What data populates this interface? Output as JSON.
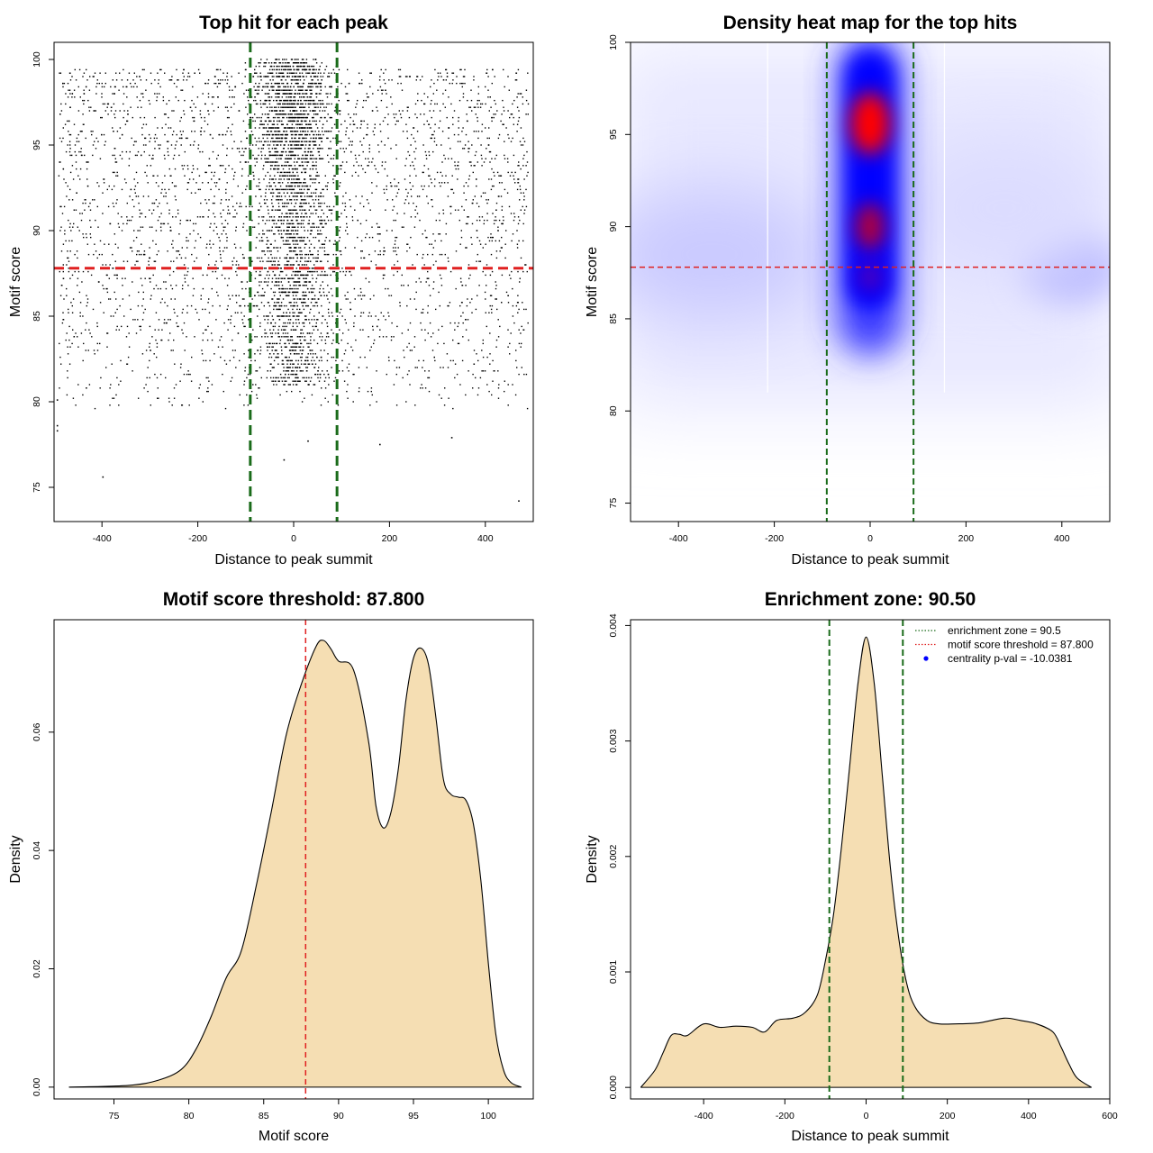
{
  "chart_data": [
    {
      "type": "scatter",
      "title": "Top hit for each peak",
      "xlabel": "Distance to peak summit",
      "ylabel": "Motif score",
      "xlim": [
        -500,
        500
      ],
      "ylim": [
        73,
        101
      ],
      "x_ticks": [
        -400,
        -200,
        0,
        200,
        400
      ],
      "y_ticks": [
        75,
        80,
        85,
        90,
        95,
        100
      ],
      "x_tick_labels": [
        "-400",
        "-200",
        "0",
        "200",
        "400"
      ],
      "y_tick_labels": [
        "75",
        "80",
        "85",
        "90",
        "95",
        "100"
      ],
      "threshold_line": {
        "y": 87.8,
        "color": "#e02020",
        "style": "dashed"
      },
      "zone_lines": {
        "x": [
          -90.5,
          90.5
        ],
        "color": "#1a6b1a",
        "style": "dashed"
      },
      "point_distribution": "dense near x=0 and high scores; uniform background across x in [-490, 490], scores mostly 80-100",
      "outliers": [
        {
          "x": -493,
          "y": 80.1
        },
        {
          "x": -493,
          "y": 78.6
        },
        {
          "x": -493,
          "y": 78.3
        },
        {
          "x": -398,
          "y": 75.6
        },
        {
          "x": -20,
          "y": 76.6
        },
        {
          "x": 30,
          "y": 77.7
        },
        {
          "x": 330,
          "y": 77.9
        },
        {
          "x": 180,
          "y": 77.5
        },
        {
          "x": 470,
          "y": 74.2
        }
      ]
    },
    {
      "type": "heatmap",
      "title": "Density heat map for the top hits",
      "xlabel": "Distance to peak summit",
      "ylabel": "Motif score",
      "xlim": [
        -500,
        500
      ],
      "ylim": [
        74,
        100
      ],
      "x_ticks": [
        -400,
        -200,
        0,
        200,
        400
      ],
      "y_ticks": [
        75,
        80,
        85,
        90,
        95,
        100
      ],
      "x_tick_labels": [
        "-400",
        "-200",
        "0",
        "200",
        "400"
      ],
      "y_tick_labels": [
        "75",
        "80",
        "85",
        "90",
        "95",
        "100"
      ],
      "threshold_line": {
        "y": 87.8,
        "color": "#e02020",
        "style": "dashed"
      },
      "zone_lines": {
        "x": [
          -90.5,
          90.5
        ],
        "color": "#1a6b1a",
        "style": "dashed"
      },
      "hotspots": [
        {
          "x": 0,
          "y": 95.6,
          "intensity": "high"
        },
        {
          "x": 0,
          "y": 90.0,
          "intensity": "medium"
        },
        {
          "x": 0,
          "y": 87.5,
          "intensity": "medium-low"
        },
        {
          "x": 420,
          "y": 87.8,
          "intensity": "low"
        }
      ],
      "colors": [
        "#ffffff",
        "#0000ff",
        "#ff0000"
      ]
    },
    {
      "type": "area",
      "title": "Motif score threshold: 87.800",
      "xlabel": "Motif score",
      "ylabel": "Density",
      "xlim": [
        71,
        103
      ],
      "ylim": [
        -0.002,
        0.079
      ],
      "x_ticks": [
        75,
        80,
        85,
        90,
        95,
        100
      ],
      "y_ticks": [
        0,
        0.02,
        0.04,
        0.06
      ],
      "x_tick_labels": [
        "75",
        "80",
        "85",
        "90",
        "95",
        "100"
      ],
      "y_tick_labels": [
        "0.00",
        "0.02",
        "0.04",
        "0.06"
      ],
      "threshold_line": {
        "x": 87.8,
        "color": "#e02020",
        "style": "dashed"
      },
      "fill_color": "#f5deb3",
      "x": [
        72,
        76,
        78,
        79.5,
        80.5,
        81.5,
        82.5,
        83.5,
        84.5,
        85.5,
        86.5,
        87.5,
        88.5,
        89,
        89.5,
        90,
        91,
        92,
        92.5,
        93,
        93.5,
        94,
        94.5,
        95,
        95.5,
        96,
        96.5,
        97,
        97.5,
        98,
        98.5,
        99,
        99.5,
        100,
        100.5,
        101,
        101.5,
        102.2
      ],
      "values": [
        0.0,
        0.0003,
        0.0012,
        0.003,
        0.0065,
        0.012,
        0.0185,
        0.023,
        0.034,
        0.0465,
        0.0595,
        0.068,
        0.0745,
        0.0755,
        0.074,
        0.072,
        0.0705,
        0.0585,
        0.0475,
        0.0438,
        0.0465,
        0.054,
        0.0655,
        0.0725,
        0.0742,
        0.0715,
        0.0625,
        0.052,
        0.0495,
        0.049,
        0.0485,
        0.0445,
        0.035,
        0.021,
        0.009,
        0.003,
        0.0008,
        0.0
      ]
    },
    {
      "type": "area",
      "title": "Enrichment zone: 90.50",
      "xlabel": "Distance to peak summit",
      "ylabel": "Density",
      "xlim": [
        -580,
        600
      ],
      "ylim": [
        -0.0001,
        0.00405
      ],
      "x_ticks": [
        -400,
        -200,
        0,
        200,
        400,
        600
      ],
      "y_ticks": [
        0,
        0.001,
        0.002,
        0.003,
        0.004
      ],
      "x_tick_labels": [
        "-400",
        "-200",
        "0",
        "200",
        "400",
        "600"
      ],
      "y_tick_labels": [
        "0.000",
        "0.001",
        "0.002",
        "0.003",
        "0.004"
      ],
      "zone_lines": {
        "x": [
          -90.5,
          90.5
        ],
        "color": "#1a6b1a",
        "style": "dashed"
      },
      "fill_color": "#f5deb3",
      "x": [
        -555,
        -520,
        -500,
        -480,
        -460,
        -440,
        -400,
        -360,
        -320,
        -280,
        -250,
        -220,
        -180,
        -150,
        -120,
        -100,
        -80,
        -60,
        -40,
        -20,
        0,
        20,
        40,
        60,
        80,
        100,
        120,
        150,
        180,
        220,
        280,
        340,
        380,
        420,
        460,
        480,
        500,
        520,
        555
      ],
      "values": [
        0.0,
        0.00015,
        0.0003,
        0.00045,
        0.00046,
        0.00045,
        0.00055,
        0.00052,
        0.00053,
        0.00052,
        0.00048,
        0.00058,
        0.0006,
        0.00065,
        0.0008,
        0.0011,
        0.0015,
        0.0021,
        0.0028,
        0.0035,
        0.0039,
        0.0035,
        0.0027,
        0.0019,
        0.0013,
        0.0009,
        0.0007,
        0.00058,
        0.00055,
        0.00055,
        0.00056,
        0.0006,
        0.00058,
        0.00055,
        0.00048,
        0.00035,
        0.0002,
        8e-05,
        0.0
      ],
      "legend": [
        {
          "label": "enrichment zone = 90.5",
          "color": "#1a6b1a",
          "style": "dotted"
        },
        {
          "label": "motif score threshold = 87.800",
          "color": "#e02020",
          "style": "dotted"
        },
        {
          "label": "centrality p-val = -10.0381",
          "color": "#0000ff",
          "style": "point"
        }
      ],
      "legend_position": "top-right"
    }
  ]
}
